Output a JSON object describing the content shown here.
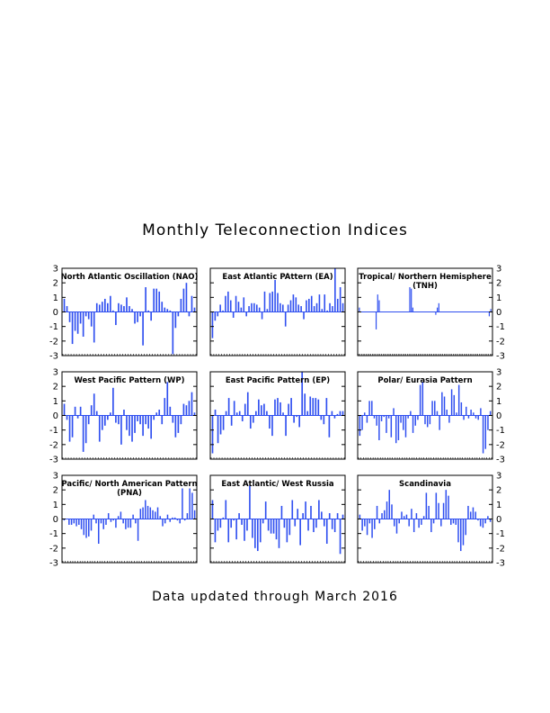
{
  "title": "Monthly Teleconnection Indices",
  "footer": "Data updated through March 2016",
  "bar_color": "#2f4ff0",
  "chart_data": [
    {
      "type": "bar",
      "title": "North Atlantic Oscillation (NAO)",
      "ylim": [
        -3,
        3
      ],
      "yticks": [
        "3",
        "2",
        "1",
        "0",
        "-1",
        "-2",
        "-3"
      ],
      "values": [
        0.9,
        0.4,
        -0.7,
        -2.2,
        -1.3,
        -1.5,
        -0.8,
        -1.7,
        -0.3,
        -0.5,
        -1.0,
        -2.1,
        0.6,
        0.5,
        0.7,
        0.9,
        0.6,
        1.1,
        0.1,
        -0.9,
        0.6,
        0.5,
        0.4,
        1.0,
        0.4,
        0.2,
        -0.8,
        -0.7,
        -0.3,
        -2.3,
        1.7,
        0.1,
        -0.6,
        1.6,
        1.6,
        1.4,
        0.7,
        0.3,
        0.2,
        0.1,
        -2.9,
        -1.1,
        -0.3,
        0.9,
        1.6,
        2.0,
        -0.3,
        1.1,
        0.3
      ]
    },
    {
      "type": "bar",
      "title": "East Atlantic PAttern (EA)",
      "ylim": [
        -3,
        3
      ],
      "yticks": [
        "3",
        "2",
        "1",
        "0",
        "-1",
        "-2",
        "-3"
      ],
      "values": [
        -1.8,
        -0.6,
        -0.3,
        0.5,
        0.1,
        1.1,
        1.4,
        0.8,
        -0.4,
        1.1,
        0.7,
        0.3,
        1.0,
        -0.3,
        0.4,
        0.6,
        0.6,
        0.5,
        0.3,
        -0.5,
        1.4,
        0.2,
        1.3,
        1.4,
        2.2,
        1.3,
        0.6,
        0.5,
        -1.0,
        0.5,
        0.8,
        1.2,
        1.0,
        0.5,
        0.4,
        -0.5,
        0.8,
        0.9,
        1.1,
        0.4,
        0.6,
        1.2,
        0.2,
        1.2,
        0.1,
        0.6,
        0.4,
        3.0,
        0.9,
        1.7,
        0.6
      ]
    },
    {
      "type": "bar",
      "title": "Tropical/ Northern Hemisphere (TNH)",
      "ylim": [
        -3,
        3
      ],
      "yticks": [
        "3",
        "2",
        "1",
        "0",
        "-1",
        "-2",
        "-3"
      ],
      "values": [
        0.3,
        0,
        0,
        0,
        0,
        0,
        0,
        0,
        0,
        0,
        0,
        -1.2,
        1.2,
        0.8,
        0,
        0,
        0,
        0,
        0,
        0,
        0,
        0,
        0,
        0,
        0,
        0,
        0,
        0,
        0,
        0,
        0,
        0,
        0,
        1.7,
        1.6,
        0.3,
        0,
        0,
        0,
        0,
        0,
        0,
        0,
        0,
        0,
        0,
        0,
        0,
        0,
        0,
        -0.2,
        0.3,
        0.6,
        0,
        0,
        0,
        0,
        0,
        0,
        0,
        0,
        0,
        0,
        0,
        0,
        0,
        0,
        0,
        0,
        0,
        0,
        0,
        0,
        0,
        0,
        0,
        0,
        0,
        0,
        0,
        0,
        0,
        0,
        0,
        0,
        -0.3,
        0.2
      ]
    },
    {
      "type": "bar",
      "title": "West Pacific Pattern (WP)",
      "ylim": [
        -3,
        3
      ],
      "yticks": [
        "3",
        "2",
        "1",
        "0",
        "-1",
        "-2",
        "-3"
      ],
      "values": [
        0.8,
        -0.3,
        -1.8,
        -1.5,
        0.6,
        -0.2,
        0.6,
        -2.5,
        -1.9,
        -0.6,
        0.7,
        1.5,
        0.3,
        -1.8,
        -1.0,
        -0.7,
        -0.3,
        0.2,
        1.9,
        -0.5,
        -0.6,
        -2.0,
        0.4,
        -1.0,
        -1.4,
        -1.8,
        -1.2,
        -0.4,
        -0.6,
        -1.4,
        -0.6,
        -0.9,
        -1.6,
        -0.3,
        0.2,
        0.4,
        -0.6,
        1.2,
        2.3,
        0.6,
        -0.5,
        -1.5,
        -1.2,
        -0.6,
        0.8,
        0.7,
        1.0,
        1.6,
        0.2
      ]
    },
    {
      "type": "bar",
      "title": "East Pacific Pattern (EP)",
      "ylim": [
        -3,
        3
      ],
      "yticks": [
        "3",
        "2",
        "1",
        "0",
        "-1",
        "-2",
        "-3"
      ],
      "values": [
        -2.6,
        0.4,
        -1.9,
        -1.3,
        -1.0,
        0.3,
        1.2,
        -0.7,
        1.0,
        0.2,
        0.3,
        -0.4,
        0.8,
        1.6,
        -0.9,
        -0.5,
        0.3,
        1.1,
        0.7,
        0.8,
        0.3,
        -0.9,
        -1.4,
        1.1,
        1.2,
        0.9,
        0.2,
        -1.4,
        0.8,
        1.2,
        -0.5,
        -0.1,
        -0.8,
        3.0,
        1.5,
        0.3,
        1.3,
        1.2,
        1.2,
        1.1,
        -0.3,
        -0.6,
        1.2,
        -1.5,
        0.3,
        -0.2,
        0.1,
        0.3,
        0.3
      ]
    },
    {
      "type": "bar",
      "title": "Polar/ Eurasia Pattern",
      "ylim": [
        -3,
        3
      ],
      "yticks": [
        "3",
        "2",
        "1",
        "0",
        "-1",
        "-2",
        "-3"
      ],
      "values": [
        -1.4,
        -1.0,
        0.2,
        -0.5,
        1.0,
        1.0,
        -0.2,
        -0.7,
        -1.7,
        -0.4,
        -0.1,
        -1.2,
        -0.2,
        -1.5,
        0.5,
        -1.9,
        -1.7,
        -0.5,
        -1.0,
        -1.5,
        -0.2,
        0.3,
        -1.2,
        -0.7,
        -0.3,
        2.1,
        2.3,
        -0.6,
        -0.8,
        -0.6,
        1.0,
        1.0,
        0.3,
        -1.0,
        1.6,
        1.3,
        0.4,
        -0.5,
        1.8,
        1.4,
        0.2,
        2.1,
        0.9,
        -0.3,
        0.6,
        -0.2,
        0.4,
        0.2,
        -0.2,
        -0.3,
        0.5,
        -2.6,
        -2.3,
        -1.0,
        0.3
      ]
    },
    {
      "type": "bar",
      "title": "Pacific/ North American Pattern (PNA)",
      "ylim": [
        -3,
        3
      ],
      "yticks": [
        "3",
        "2",
        "1",
        "0",
        "-1",
        "-2",
        "-3"
      ],
      "values": [
        -0.1,
        0.0,
        -0.4,
        -0.4,
        -0.3,
        -0.5,
        -0.4,
        -0.7,
        -1.1,
        -1.3,
        -1.2,
        -0.8,
        0.3,
        -0.3,
        -1.7,
        -0.3,
        -0.7,
        -0.4,
        0.4,
        -0.2,
        -0.1,
        -0.6,
        0.2,
        0.5,
        -0.3,
        -0.7,
        -0.6,
        -0.6,
        0.3,
        -0.3,
        -1.5,
        0.7,
        0.8,
        1.3,
        0.9,
        0.8,
        0.6,
        0.5,
        0.8,
        0.2,
        -0.5,
        -0.3,
        0.3,
        -0.2,
        0.1,
        0.1,
        -0.1,
        -0.3,
        2.1,
        -0.1,
        0.4,
        2.1,
        1.8,
        0.6
      ]
    },
    {
      "type": "bar",
      "title": "East Atlantic/ West Russia",
      "ylim": [
        -3,
        3
      ],
      "yticks": [
        "3",
        "2",
        "1",
        "0",
        "-1",
        "-2",
        "-3"
      ],
      "values": [
        1.3,
        -1.6,
        -0.8,
        -0.6,
        0.1,
        1.3,
        -1.6,
        -0.6,
        -0.1,
        -1.4,
        0.4,
        -0.4,
        -1.5,
        -0.8,
        2.3,
        -1.3,
        -2.0,
        -2.2,
        -1.6,
        -0.3,
        1.2,
        -0.8,
        -1.0,
        -1.0,
        -1.4,
        -2.0,
        0.9,
        -0.6,
        -1.6,
        -1.1,
        1.3,
        -0.5,
        0.7,
        -1.8,
        0.4,
        1.2,
        -0.8,
        0.9,
        -0.9,
        -0.6,
        1.3,
        0.5,
        -0.5,
        -1.7,
        0.4,
        -0.7,
        -0.9,
        0.4,
        -2.4,
        0.3
      ]
    },
    {
      "type": "bar",
      "title": "Scandinavia",
      "ylim": [
        -3,
        3
      ],
      "yticks": [
        "3",
        "2",
        "1",
        "0",
        "-1",
        "-2",
        "-3"
      ],
      "values": [
        0.3,
        -0.8,
        -0.5,
        -1.1,
        -0.3,
        -1.3,
        -0.7,
        0.9,
        -0.3,
        0.4,
        0.6,
        1.2,
        2.0,
        1.0,
        -0.5,
        -1.0,
        -0.3,
        0.5,
        0.2,
        0.3,
        -0.5,
        0.7,
        -0.9,
        0.4,
        -0.6,
        -0.4,
        0.2,
        1.8,
        0.9,
        -0.9,
        -0.3,
        1.8,
        1.1,
        -0.5,
        1.1,
        2.0,
        1.6,
        -0.4,
        -0.3,
        -0.4,
        -1.6,
        -2.2,
        -1.8,
        -1.1,
        0.9,
        0.5,
        0.8,
        0.5,
        -0.1,
        -0.5,
        -0.6,
        -0.3,
        0.2,
        -0.2
      ]
    }
  ]
}
